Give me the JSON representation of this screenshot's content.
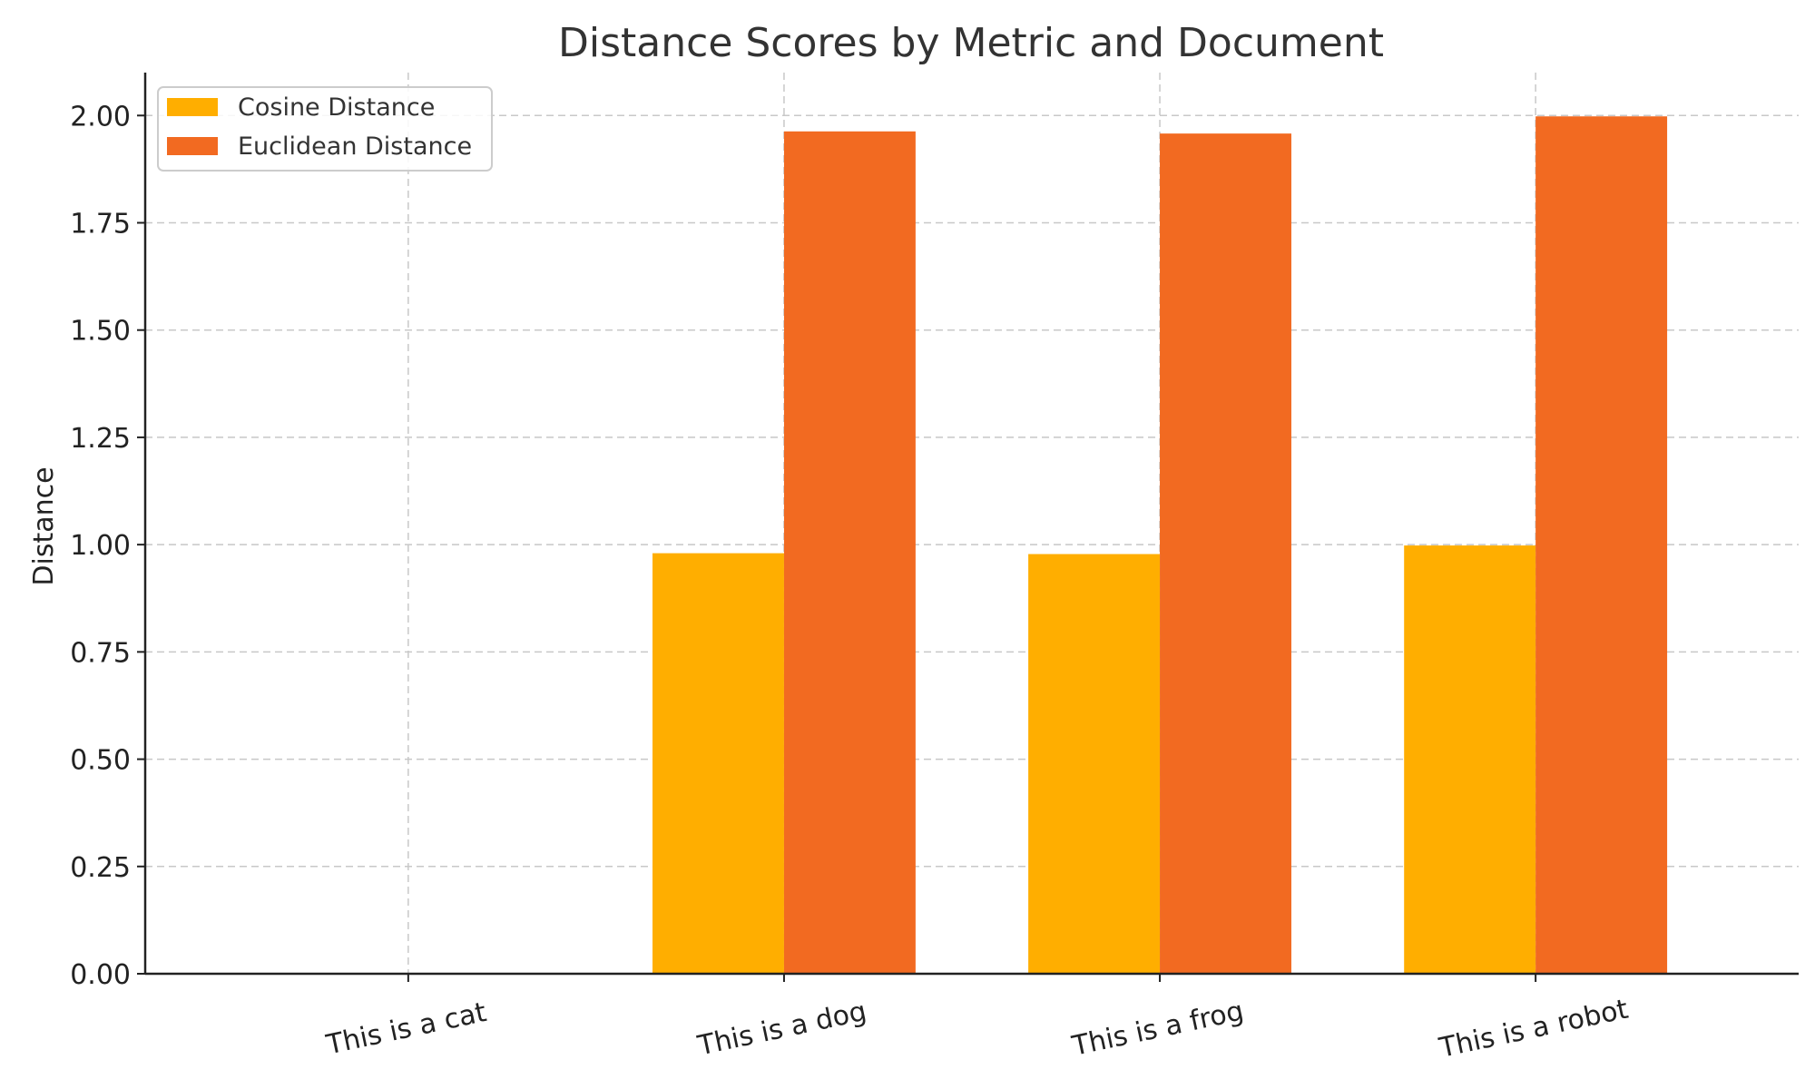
{
  "chart_data": {
    "type": "bar",
    "title": "Distance Scores by Metric and Document",
    "xlabel": "",
    "ylabel": "Distance",
    "categories": [
      "This is a cat",
      "This is a dog",
      "This is a frog",
      "This is a robot"
    ],
    "series": [
      {
        "name": "Cosine Distance",
        "color": "#FFAE00",
        "values": [
          0.0,
          0.98,
          0.978,
          0.998
        ]
      },
      {
        "name": "Euclidean Distance",
        "color": "#F26A21",
        "values": [
          0.0,
          1.963,
          1.958,
          1.998
        ]
      }
    ],
    "ylim": [
      0,
      2.1
    ],
    "yticks": [
      "0.00",
      "0.25",
      "0.50",
      "0.75",
      "1.00",
      "1.25",
      "1.50",
      "1.75",
      "2.00"
    ],
    "grid": true,
    "legend": "top-left"
  }
}
